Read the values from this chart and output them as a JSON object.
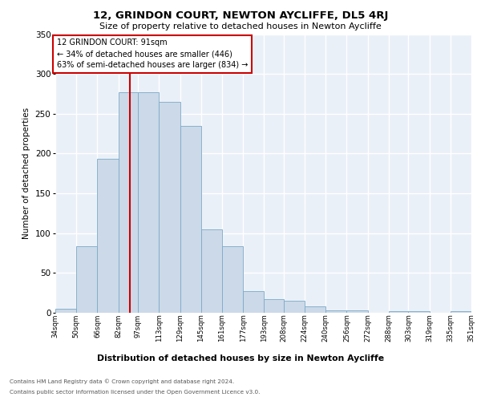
{
  "title": "12, GRINDON COURT, NEWTON AYCLIFFE, DL5 4RJ",
  "subtitle": "Size of property relative to detached houses in Newton Aycliffe",
  "xlabel": "Distribution of detached houses by size in Newton Aycliffe",
  "ylabel": "Number of detached properties",
  "bar_color": "#ccd9e8",
  "bar_edge_color": "#7aaac8",
  "background_color": "#eaf0f8",
  "grid_color": "#ffffff",
  "annotation_title": "12 GRINDON COURT: 91sqm",
  "annotation_line1": "← 34% of detached houses are smaller (446)",
  "annotation_line2": "63% of semi-detached houses are larger (834) →",
  "property_line_x": 91,
  "property_line_color": "#cc0000",
  "bin_edges": [
    34,
    50,
    66,
    82,
    97,
    113,
    129,
    145,
    161,
    177,
    193,
    208,
    224,
    240,
    256,
    272,
    288,
    303,
    319,
    335,
    351
  ],
  "bar_heights": [
    5,
    84,
    193,
    277,
    277,
    265,
    235,
    105,
    84,
    27,
    17,
    15,
    8,
    3,
    3,
    0,
    2,
    2,
    0,
    2
  ],
  "tick_labels": [
    "34sqm",
    "50sqm",
    "66sqm",
    "82sqm",
    "97sqm",
    "113sqm",
    "129sqm",
    "145sqm",
    "161sqm",
    "177sqm",
    "193sqm",
    "208sqm",
    "224sqm",
    "240sqm",
    "256sqm",
    "272sqm",
    "288sqm",
    "303sqm",
    "319sqm",
    "335sqm",
    "351sqm"
  ],
  "ylim": [
    0,
    350
  ],
  "yticks": [
    0,
    50,
    100,
    150,
    200,
    250,
    300,
    350
  ],
  "footer_line1": "Contains HM Land Registry data © Crown copyright and database right 2024.",
  "footer_line2": "Contains public sector information licensed under the Open Government Licence v3.0."
}
